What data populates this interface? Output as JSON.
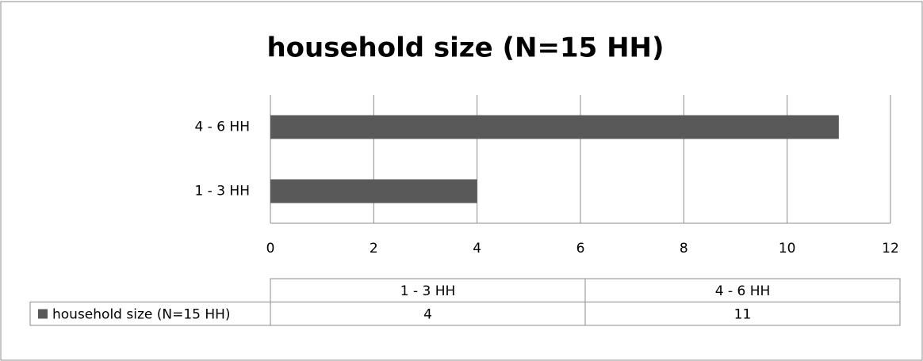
{
  "chart_data": {
    "type": "bar",
    "orientation": "horizontal",
    "title": "household size (N=15 HH)",
    "categories": [
      "1 - 3 HH",
      "4 - 6 HH"
    ],
    "series": [
      {
        "name": "household size (N=15 HH)",
        "color": "#595959",
        "values": [
          4,
          11
        ]
      }
    ],
    "xlim": [
      0,
      12
    ],
    "xticks": [
      0,
      2,
      4,
      6,
      8,
      10,
      12
    ],
    "grid": true,
    "data_table": true
  }
}
